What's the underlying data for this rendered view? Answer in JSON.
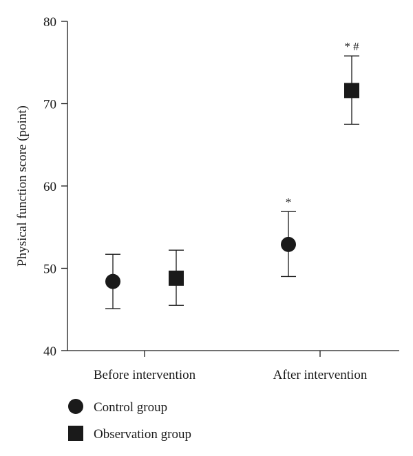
{
  "chart_data": {
    "type": "scatter",
    "ylabel": "Physical function score (point)",
    "ylim": [
      40,
      80
    ],
    "yticks": [
      40,
      50,
      60,
      70,
      80
    ],
    "categories": [
      "Before intervention",
      "After intervention"
    ],
    "series": [
      {
        "name": "Control group",
        "marker": "circle",
        "color": "#1a1a1a",
        "values": [
          48.4,
          52.9
        ],
        "error_low": [
          45.1,
          49.0
        ],
        "error_high": [
          51.7,
          56.9
        ],
        "annotations": [
          "",
          "*"
        ]
      },
      {
        "name": "Observation group",
        "marker": "square",
        "color": "#1a1a1a",
        "values": [
          48.8,
          71.6
        ],
        "error_low": [
          45.5,
          67.5
        ],
        "error_high": [
          52.2,
          75.8
        ],
        "annotations": [
          "",
          "* #"
        ]
      }
    ],
    "grid": false,
    "legend_position": "bottom-left"
  }
}
